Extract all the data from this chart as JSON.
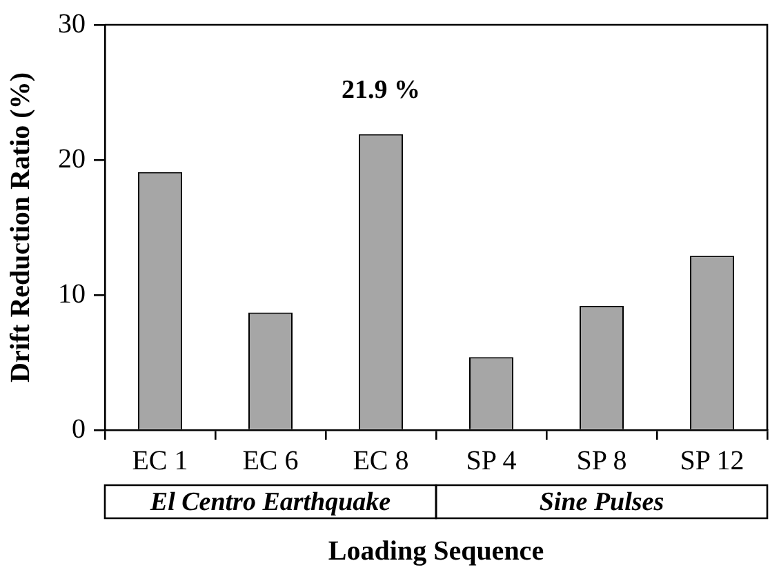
{
  "chart_data": {
    "type": "bar",
    "xlabel": "Loading Sequence",
    "ylabel": "Drift Reduction Ratio (%)",
    "categories": [
      "EC 1",
      "EC 6",
      "EC 8",
      "SP 4",
      "SP 8",
      "SP 12"
    ],
    "values": [
      19.1,
      8.7,
      21.9,
      5.4,
      9.2,
      12.9
    ],
    "value_labels": [
      null,
      null,
      "21.9 %",
      null,
      null,
      null
    ],
    "color": "#a6a6a6",
    "ylim": [
      0,
      30
    ],
    "yticks": [
      0,
      10,
      20,
      30
    ],
    "grid": false,
    "legend": false,
    "annotations": [
      "El Centro Earthquake",
      "Sine Pulses"
    ]
  }
}
